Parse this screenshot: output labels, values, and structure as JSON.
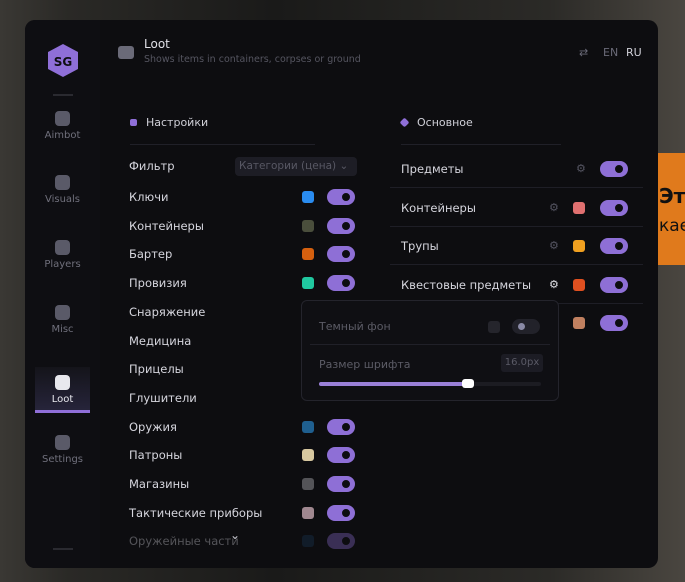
{
  "background": {
    "line1": "Эт",
    "line2": "кае"
  },
  "sidebar": {
    "logo": "SG",
    "items": [
      {
        "label": "Aimbot",
        "icon": "alien-icon"
      },
      {
        "label": "Visuals",
        "icon": "vr-headset-icon"
      },
      {
        "label": "Players",
        "icon": "users-icon"
      },
      {
        "label": "Misc",
        "icon": "dots-icon"
      },
      {
        "label": "Loot",
        "icon": "briefcase-icon",
        "active": true
      },
      {
        "label": "Settings",
        "icon": "list-icon"
      }
    ]
  },
  "header": {
    "title": "Loot",
    "subtitle": "Shows items in containers, corpses or ground",
    "lang_options": [
      "EN",
      "RU"
    ],
    "active_lang": "RU"
  },
  "settings": {
    "title": "Настройки",
    "filter_label": "Фильтр",
    "filter_value": "Категории (цена)",
    "items": [
      {
        "label": "Ключи",
        "color": "#2a8cf0",
        "on": true
      },
      {
        "label": "Контейнеры",
        "color": "#4a4e3c",
        "on": true
      },
      {
        "label": "Бартер",
        "color": "#d5600f",
        "on": true
      },
      {
        "label": "Провизия",
        "color": "#20c8a0",
        "on": true
      },
      {
        "label": "Снаряжение"
      },
      {
        "label": "Медицина"
      },
      {
        "label": "Прицелы"
      },
      {
        "label": "Глушители"
      },
      {
        "label": "Оружия",
        "color": "#1f5f8f",
        "on": true
      },
      {
        "label": "Патроны",
        "color": "#d8c8a0",
        "on": true
      },
      {
        "label": "Магазины",
        "color": "#545458",
        "on": true
      },
      {
        "label": "Тактические приборы",
        "color": "#a08890",
        "on": true
      },
      {
        "label": "Оружейные части",
        "color": "#1a3a5a",
        "on": true
      }
    ]
  },
  "main": {
    "title": "Основное",
    "items": [
      {
        "label": "Предметы",
        "on": true
      },
      {
        "label": "Контейнеры",
        "color": "#e07070",
        "on": true
      },
      {
        "label": "Трупы",
        "color": "#f0a020",
        "on": true
      },
      {
        "label": "Квестовые предметы",
        "color": "#e05020",
        "on": true
      },
      {
        "label": "",
        "color": "#c08060",
        "on": true
      }
    ]
  },
  "popup": {
    "dark_bg_label": "Темный фон",
    "dark_bg_on": false,
    "font_size_label": "Размер шрифта",
    "font_size_value": "16.0px",
    "font_size_fraction": 0.67
  },
  "accent": "#8e6fd6"
}
